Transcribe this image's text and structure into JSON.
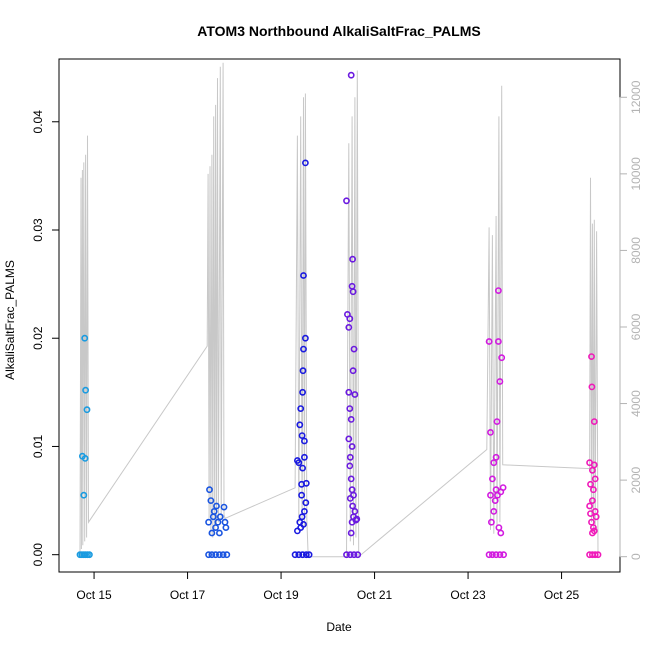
{
  "chart_data": {
    "type": "scatter",
    "title": "ATOM3 Northbound AlkaliSaltFrac_PALMS",
    "xlabel": "Date",
    "ylabel": "AlkaliSaltFrac_PALMS",
    "x_ticks": [
      "Oct 15",
      "Oct 17",
      "Oct 19",
      "Oct 21",
      "Oct 23",
      "Oct 25"
    ],
    "x_tick_days": [
      15,
      17,
      19,
      21,
      23,
      25
    ],
    "xlim_days": [
      14.25,
      26.25
    ],
    "y_ticks": [
      "0.00",
      "0.01",
      "0.02",
      "0.03",
      "0.04"
    ],
    "y_tick_values": [
      0,
      0.01,
      0.02,
      0.03,
      0.04
    ],
    "ylim": [
      -0.0016,
      0.0458
    ],
    "y2_ticks": [
      "0",
      "2000",
      "4000",
      "6000",
      "8000",
      "10000",
      "12000"
    ],
    "y2_tick_values": [
      0,
      2000,
      4000,
      6000,
      8000,
      10000,
      12000
    ],
    "y2lim": [
      -400,
      13000
    ],
    "grid": false,
    "colors": {
      "altitude_line": "#c8c8c8",
      "axis": "#000000",
      "right_axis": "#b3b3b3",
      "flight_colors": [
        "#1a9be0",
        "#1a55e0",
        "#1a1ae0",
        "#6b1ae0",
        "#d21ae0",
        "#f01aba"
      ]
    },
    "series": [
      {
        "points": [
          [
            14.75,
            0.0091
          ],
          [
            14.78,
            0.0055
          ],
          [
            14.81,
            0.0089
          ],
          [
            14.8,
            0.02
          ],
          [
            14.82,
            0.0152
          ],
          [
            14.85,
            0.0134
          ],
          [
            14.7,
            0
          ],
          [
            14.74,
            0
          ],
          [
            14.78,
            0
          ],
          [
            14.82,
            0
          ],
          [
            14.86,
            0
          ],
          [
            14.9,
            0
          ]
        ]
      },
      {
        "points": [
          [
            17.45,
            0.003
          ],
          [
            17.47,
            0.006
          ],
          [
            17.5,
            0.005
          ],
          [
            17.52,
            0.002
          ],
          [
            17.55,
            0.0035
          ],
          [
            17.57,
            0.004
          ],
          [
            17.6,
            0.0025
          ],
          [
            17.62,
            0.0045
          ],
          [
            17.65,
            0.003
          ],
          [
            17.68,
            0.002
          ],
          [
            17.7,
            0.0035
          ],
          [
            17.78,
            0.0044
          ],
          [
            17.8,
            0.003
          ],
          [
            17.82,
            0.0025
          ],
          [
            17.45,
            0
          ],
          [
            17.52,
            0
          ],
          [
            17.6,
            0
          ],
          [
            17.68,
            0
          ],
          [
            17.76,
            0
          ],
          [
            17.84,
            0
          ]
        ]
      },
      {
        "points": [
          [
            19.35,
            0.0087
          ],
          [
            19.38,
            0.0085
          ],
          [
            19.4,
            0.012
          ],
          [
            19.42,
            0.0135
          ],
          [
            19.44,
            0.0065
          ],
          [
            19.45,
            0.011
          ],
          [
            19.46,
            0.015
          ],
          [
            19.47,
            0.017
          ],
          [
            19.48,
            0.019
          ],
          [
            19.48,
            0.0258
          ],
          [
            19.5,
            0.009
          ],
          [
            19.5,
            0.0105
          ],
          [
            19.52,
            0.02
          ],
          [
            19.52,
            0.0362
          ],
          [
            19.54,
            0.0066
          ],
          [
            19.53,
            0.0048
          ],
          [
            19.45,
            0.0035
          ],
          [
            19.4,
            0.003
          ],
          [
            19.42,
            0.0025
          ],
          [
            19.48,
            0.0028
          ],
          [
            19.35,
            0.0022
          ],
          [
            19.5,
            0.004
          ],
          [
            19.44,
            0.0055
          ],
          [
            19.46,
            0.008
          ],
          [
            19.3,
            0
          ],
          [
            19.38,
            0
          ],
          [
            19.46,
            0
          ],
          [
            19.54,
            0
          ],
          [
            19.6,
            0
          ]
        ]
      },
      {
        "points": [
          [
            20.4,
            0.0327
          ],
          [
            20.42,
            0.0222
          ],
          [
            20.45,
            0.021
          ],
          [
            20.47,
            0.0218
          ],
          [
            20.5,
            0.0443
          ],
          [
            20.52,
            0.0248
          ],
          [
            20.54,
            0.0243
          ],
          [
            20.53,
            0.0273
          ],
          [
            20.45,
            0.015
          ],
          [
            20.47,
            0.0135
          ],
          [
            20.5,
            0.0125
          ],
          [
            20.52,
            0.01
          ],
          [
            20.54,
            0.017
          ],
          [
            20.56,
            0.019
          ],
          [
            20.58,
            0.0148
          ],
          [
            20.48,
            0.009
          ],
          [
            20.5,
            0.007
          ],
          [
            20.52,
            0.006
          ],
          [
            20.47,
            0.0082
          ],
          [
            20.55,
            0.0035
          ],
          [
            20.58,
            0.004
          ],
          [
            20.6,
            0.0032
          ],
          [
            20.45,
            0.0107
          ],
          [
            20.53,
            0.0045
          ],
          [
            20.55,
            0.0055
          ],
          [
            20.5,
            0.002
          ],
          [
            20.62,
            0.0033
          ],
          [
            20.48,
            0.0052
          ],
          [
            20.52,
            0.003
          ],
          [
            20.4,
            0
          ],
          [
            20.48,
            0
          ],
          [
            20.56,
            0
          ],
          [
            20.64,
            0
          ]
        ]
      },
      {
        "points": [
          [
            23.45,
            0.0197
          ],
          [
            23.48,
            0.0113
          ],
          [
            23.52,
            0.007
          ],
          [
            23.55,
            0.0085
          ],
          [
            23.58,
            0.005
          ],
          [
            23.6,
            0.009
          ],
          [
            23.62,
            0.0123
          ],
          [
            23.65,
            0.0244
          ],
          [
            23.65,
            0.0197
          ],
          [
            23.68,
            0.016
          ],
          [
            23.7,
            0.0058
          ],
          [
            23.72,
            0.0182
          ],
          [
            23.75,
            0.0062
          ],
          [
            23.5,
            0.003
          ],
          [
            23.55,
            0.004
          ],
          [
            23.6,
            0.006
          ],
          [
            23.63,
            0.0055
          ],
          [
            23.66,
            0.0025
          ],
          [
            23.7,
            0.002
          ],
          [
            23.48,
            0.0055
          ],
          [
            23.45,
            0
          ],
          [
            23.52,
            0
          ],
          [
            23.6,
            0
          ],
          [
            23.68,
            0
          ],
          [
            23.76,
            0
          ]
        ]
      },
      {
        "points": [
          [
            25.6,
            0.0085
          ],
          [
            25.62,
            0.0065
          ],
          [
            25.64,
            0.0183
          ],
          [
            25.65,
            0.0155
          ],
          [
            25.66,
            0.0078
          ],
          [
            25.68,
            0.006
          ],
          [
            25.7,
            0.0123
          ],
          [
            25.7,
            0.0083
          ],
          [
            25.72,
            0.007
          ],
          [
            25.6,
            0.0045
          ],
          [
            25.62,
            0.0038
          ],
          [
            25.64,
            0.003
          ],
          [
            25.66,
            0.005
          ],
          [
            25.68,
            0.0025
          ],
          [
            25.7,
            0.0022
          ],
          [
            25.72,
            0.004
          ],
          [
            25.74,
            0.0035
          ],
          [
            25.66,
            0.002
          ],
          [
            25.6,
            0
          ],
          [
            25.66,
            0
          ],
          [
            25.72,
            0
          ],
          [
            25.78,
            0
          ]
        ]
      }
    ],
    "altitude_track": [
      [
        14.7,
        0
      ],
      [
        14.72,
        9900
      ],
      [
        14.73,
        200
      ],
      [
        14.75,
        10100
      ],
      [
        14.76,
        300
      ],
      [
        14.78,
        10300
      ],
      [
        14.8,
        400
      ],
      [
        14.82,
        10500
      ],
      [
        14.84,
        500
      ],
      [
        14.86,
        11000
      ],
      [
        14.88,
        900
      ],
      [
        17.42,
        5500
      ],
      [
        17.44,
        10000
      ],
      [
        17.46,
        1000
      ],
      [
        17.48,
        10200
      ],
      [
        17.5,
        600
      ],
      [
        17.52,
        10500
      ],
      [
        17.54,
        500
      ],
      [
        17.56,
        11500
      ],
      [
        17.58,
        700
      ],
      [
        17.6,
        11800
      ],
      [
        17.62,
        800
      ],
      [
        17.64,
        12500
      ],
      [
        17.66,
        900
      ],
      [
        17.7,
        12800
      ],
      [
        17.72,
        1000
      ],
      [
        17.76,
        12900
      ],
      [
        17.78,
        1100
      ],
      [
        17.8,
        1000
      ],
      [
        19.3,
        1800
      ],
      [
        19.35,
        11000
      ],
      [
        19.38,
        900
      ],
      [
        19.42,
        11500
      ],
      [
        19.45,
        700
      ],
      [
        19.48,
        12000
      ],
      [
        19.5,
        800
      ],
      [
        19.52,
        12100
      ],
      [
        19.55,
        1000
      ],
      [
        19.58,
        0
      ],
      [
        20.4,
        0
      ],
      [
        20.45,
        10800
      ],
      [
        20.48,
        400
      ],
      [
        20.52,
        11500
      ],
      [
        20.55,
        300
      ],
      [
        20.58,
        12000
      ],
      [
        20.6,
        500
      ],
      [
        20.63,
        12700
      ],
      [
        20.66,
        0
      ],
      [
        23.4,
        2800
      ],
      [
        23.45,
        8600
      ],
      [
        23.48,
        700
      ],
      [
        23.52,
        8400
      ],
      [
        23.55,
        600
      ],
      [
        23.6,
        8900
      ],
      [
        23.62,
        800
      ],
      [
        23.66,
        11500
      ],
      [
        23.68,
        900
      ],
      [
        23.72,
        12300
      ],
      [
        23.74,
        2400
      ],
      [
        25.6,
        2300
      ],
      [
        25.62,
        9900
      ],
      [
        25.64,
        900
      ],
      [
        25.66,
        8700
      ],
      [
        25.68,
        700
      ],
      [
        25.7,
        8800
      ],
      [
        25.72,
        600
      ],
      [
        25.75,
        8500
      ],
      [
        25.78,
        0
      ]
    ]
  }
}
